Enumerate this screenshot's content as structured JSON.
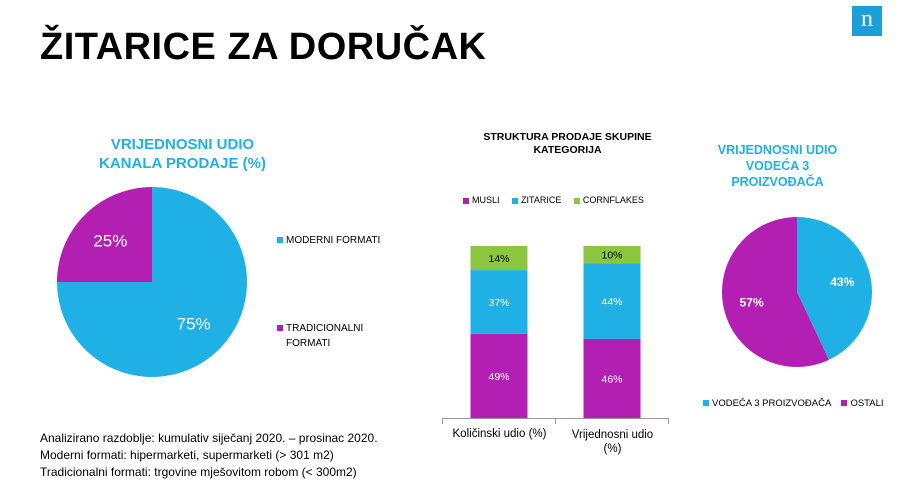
{
  "title": "ŽITARICE ZA DORUČAK",
  "logo_text": "n",
  "colors": {
    "purple": "#b31fb3",
    "blue": "#1fb1e6",
    "green": "#8cc63f",
    "title_blue": "#1fb1e6"
  },
  "chart1": {
    "title_line1": "VRIJEDNOSNI UDIO",
    "title_line2": "KANALA PRODAJE (%)",
    "legend": [
      {
        "label": "MODERNI FORMATI",
        "color": "#1fb1e6"
      },
      {
        "label_line1": "TRADICIONALNI",
        "label_line2": "FORMATI",
        "color": "#b31fb3"
      }
    ]
  },
  "chart2": {
    "title_line1": "STRUKTURA PRODAJE SKUPINE",
    "title_line2": "KATEGORIJA",
    "categories": [
      "Količinski udio (%)",
      "Vrijednosni udio (%)"
    ],
    "category2_line1": "Vrijednosni udio",
    "category2_line2": "(%)"
  },
  "chart3": {
    "title_line1": "VRIJEDNOSNI UDIO",
    "title_line2": "VODEĆA 3",
    "title_line3": "PROIZVOĐAČA",
    "legend": [
      {
        "label": "VODEĆA 3 PROIZVOĐAČA",
        "color": "#1fb1e6"
      },
      {
        "label": "OSTALI",
        "color": "#b31fb3"
      }
    ]
  },
  "notes": [
    "Analizirano razdoblje: kumulativ siječanj 2020. – prosinac 2020.",
    "Moderni formati: hipermarketi, supermarketi (> 301 m2)",
    "Tradicionalni formati: trgovine mješovitom robom (< 300m2)"
  ],
  "chart_data": [
    {
      "type": "pie",
      "title": "VRIJEDNOSNI UDIO KANALA PRODAJE (%)",
      "labels": [
        "MODERNI FORMATI",
        "TRADICIONALNI FORMATI"
      ],
      "values": [
        75,
        25
      ],
      "value_labels": [
        "75%",
        "25%"
      ],
      "colors": [
        "#1fb1e6",
        "#b31fb3"
      ],
      "legend": "right"
    },
    {
      "type": "bar",
      "stacked": true,
      "title": "STRUKTURA PRODAJE SKUPINE KATEGORIJA",
      "categories": [
        "Količinski udio (%)",
        "Vrijednosni udio (%)"
      ],
      "series": [
        {
          "name": "MUSLI",
          "values": [
            49,
            46
          ],
          "labels": [
            "49%",
            "46%"
          ],
          "color": "#b31fb3"
        },
        {
          "name": "ZITARICE",
          "values": [
            37,
            44
          ],
          "labels": [
            "37%",
            "44%"
          ],
          "color": "#1fb1e6"
        },
        {
          "name": "CORNFLAKES",
          "values": [
            14,
            10
          ],
          "labels": [
            "14%",
            "10%"
          ],
          "color": "#8cc63f"
        }
      ],
      "ylim": [
        0,
        100
      ],
      "legend": "top"
    },
    {
      "type": "pie",
      "title": "VRIJEDNOSNI UDIO VODEĆA 3 PROIZVOĐAČA",
      "labels": [
        "VODEĆA 3 PROIZVOĐAČA",
        "OSTALI"
      ],
      "values": [
        43,
        57
      ],
      "value_labels": [
        "43%",
        "57%"
      ],
      "colors": [
        "#1fb1e6",
        "#b31fb3"
      ],
      "legend": "bottom"
    }
  ]
}
